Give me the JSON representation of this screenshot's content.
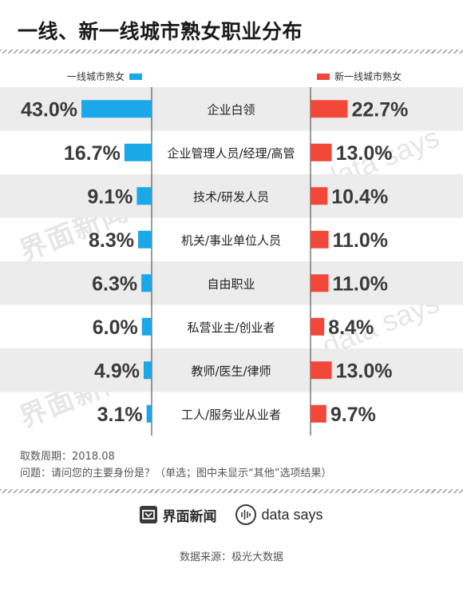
{
  "title": "一线、新一线城市熟女职业分布",
  "colors": {
    "first_tier": "#1aa8e8",
    "new_first_tier": "#f2483a",
    "row_band": "#ececec"
  },
  "chart_data": {
    "type": "bar",
    "orientation": "horizontal-butterfly",
    "categories": [
      "企业白领",
      "企业管理人员/经理/高管",
      "技术/研发人员",
      "机关/事业单位人员",
      "自由职业",
      "私营业主/创业者",
      "教师/医生/律师",
      "工人/服务业从业者"
    ],
    "series": [
      {
        "name": "一线城市熟女",
        "side": "left",
        "values": [
          43.0,
          16.7,
          9.1,
          8.3,
          6.3,
          6.0,
          4.9,
          3.1
        ]
      },
      {
        "name": "新一线城市熟女",
        "side": "right",
        "values": [
          22.7,
          13.0,
          10.4,
          11.0,
          11.0,
          8.4,
          13.0,
          9.7
        ]
      }
    ],
    "labels_left": [
      "43.0%",
      "16.7%",
      "9.1%",
      "8.3%",
      "6.3%",
      "6.0%",
      "4.9%",
      "3.1%"
    ],
    "labels_right": [
      "22.7%",
      "13.0%",
      "10.4%",
      "11.0%",
      "11.0%",
      "8.4%",
      "13.0%",
      "9.7%"
    ],
    "unit": "%",
    "value_scale_max": 43.0,
    "legend_position": "top"
  },
  "notes": {
    "period": "取数周期：2018.08",
    "question": "问题：请问您的主要身份是？（单选；图中未显示“其他”选项结果）"
  },
  "watermark": {
    "brand": "界面新闻",
    "says": "data says"
  },
  "footer": {
    "brand_jiemian": "界面新闻",
    "brand_datasays": "data says",
    "source": "数据来源：极光大数据"
  }
}
